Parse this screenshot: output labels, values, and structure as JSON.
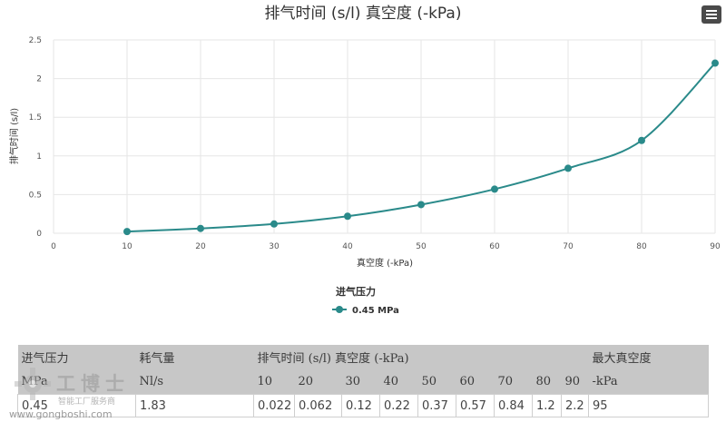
{
  "chart_data": {
    "type": "line",
    "title": "排气时间 (s/l) 真空度 (-kPa)",
    "xlabel": "真空度 (-kPa)",
    "ylabel": "排气时间 (s/l)",
    "xlim": [
      0,
      90
    ],
    "ylim": [
      0,
      2.5
    ],
    "x_ticks": [
      "0",
      "10",
      "20",
      "30",
      "40",
      "50",
      "60",
      "70",
      "80",
      "90"
    ],
    "y_ticks": [
      "0",
      "0.5",
      "1",
      "1.5",
      "2",
      "2.5"
    ],
    "grid": true,
    "legend_title": "进气压力",
    "legend_position": "bottom-center",
    "series": [
      {
        "name": "0.45 MPa",
        "color": "#2a8a8a",
        "x": [
          10,
          20,
          30,
          40,
          50,
          60,
          70,
          80,
          90
        ],
        "y": [
          0.022,
          0.062,
          0.12,
          0.22,
          0.37,
          0.57,
          0.84,
          1.2,
          2.2
        ]
      }
    ]
  },
  "menu_icon": "hamburger-menu-icon",
  "table": {
    "header_row1": [
      "进气压力",
      "耗气量",
      "排气时间 (s/l) 真空度 (-kPa)",
      "最大真空度"
    ],
    "header_row2": [
      "MPa",
      "Nl/s",
      "10",
      "20",
      "30",
      "40",
      "50",
      "60",
      "70",
      "80",
      "90",
      "-kPa"
    ],
    "rows": [
      [
        "0.45",
        "1.83",
        "0.022",
        "0.062",
        "0.12",
        "0.22",
        "0.37",
        "0.57",
        "0.84",
        "1.2",
        "2.2",
        "95"
      ]
    ]
  },
  "watermark": {
    "title": "工博士",
    "subtitle": "智能工厂服务商",
    "url": "www.gongboshi.com"
  }
}
